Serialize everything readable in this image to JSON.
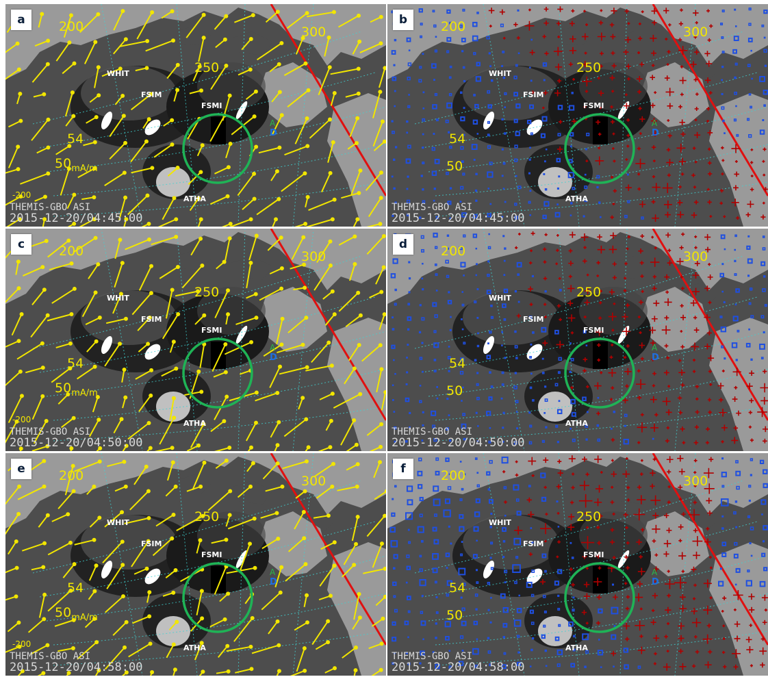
{
  "instrument": "THEMIS-GBO ASI",
  "stations": [
    "WHIT",
    "FSIM",
    "FSMI",
    "ATHA"
  ],
  "lon_labels": [
    "200",
    "250",
    "300"
  ],
  "lat_labels": [
    "54",
    "50"
  ],
  "scale_label": {
    "value": "50",
    "unit": "mA/m"
  },
  "minus_label": "-200",
  "marker_letters": {
    "top": "A",
    "bottom": "D"
  },
  "colors": {
    "yellow": "#f2e600",
    "red_line": "#e01010",
    "green_circle": "#1fb356",
    "blue": "#1f4fe0",
    "dark_red": "#b00000",
    "land": "#4d4d4d",
    "ocean": "#9a9a9a"
  },
  "panels": [
    {
      "label": "a",
      "type": "vectors",
      "timestamp": "2015-12-20/04:45:00"
    },
    {
      "label": "b",
      "type": "fac",
      "timestamp": "2015-12-20/04:45:00"
    },
    {
      "label": "c",
      "type": "vectors",
      "timestamp": "2015-12-20/04:50:00"
    },
    {
      "label": "d",
      "type": "fac",
      "timestamp": "2015-12-20/04:50:00"
    },
    {
      "label": "e",
      "type": "vectors",
      "timestamp": "2015-12-20/04:58:00"
    },
    {
      "label": "f",
      "type": "fac",
      "timestamp": "2015-12-20/04:58:00"
    }
  ]
}
